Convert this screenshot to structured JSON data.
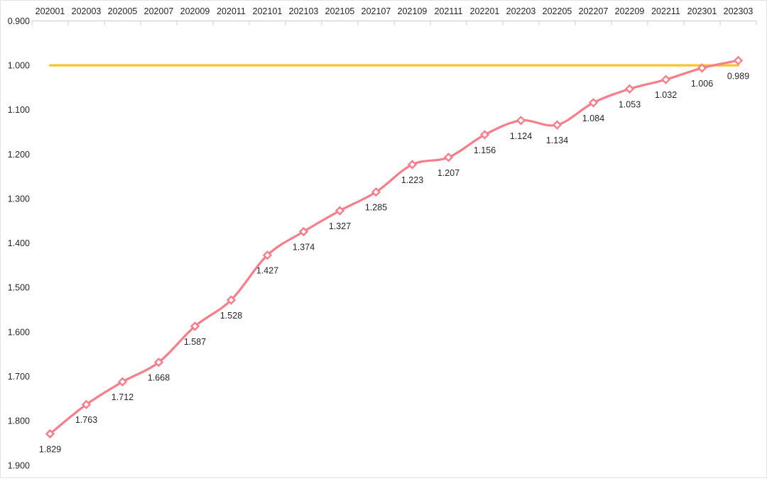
{
  "chart_data": {
    "type": "line",
    "title": "",
    "xlabel": "",
    "ylabel": "",
    "x_axis": {
      "position": "top",
      "categories": [
        "202001",
        "202003",
        "202005",
        "202007",
        "202009",
        "202011",
        "202101",
        "202103",
        "202105",
        "202107",
        "202109",
        "202111",
        "202201",
        "202203",
        "202205",
        "202207",
        "202209",
        "202211",
        "202301",
        "202303"
      ]
    },
    "y_axis": {
      "inverted": true,
      "min": 0.9,
      "max": 1.9,
      "step": 0.1,
      "tick_labels": [
        "0.900",
        "1.000",
        "1.100",
        "1.200",
        "1.300",
        "1.400",
        "1.500",
        "1.600",
        "1.700",
        "1.800",
        "1.900"
      ]
    },
    "series": [
      {
        "name": "value-line",
        "type": "line",
        "smooth": true,
        "color": "#f97d8b",
        "marker": "diamond",
        "marker_fill": "#ffffff",
        "values": [
          1.829,
          1.763,
          1.712,
          1.668,
          1.587,
          1.528,
          1.427,
          1.374,
          1.327,
          1.285,
          1.223,
          1.207,
          1.156,
          1.124,
          1.134,
          1.084,
          1.053,
          1.032,
          1.006,
          0.989
        ],
        "data_labels": [
          "1.829",
          "1.763",
          "1.712",
          "1.668",
          "1.587",
          "1.528",
          "1.427",
          "1.374",
          "1.327",
          "1.285",
          "1.223",
          "1.207",
          "1.156",
          "1.124",
          "1.134",
          "1.084",
          "1.053",
          "1.032",
          "1.006",
          "0.989"
        ]
      },
      {
        "name": "reference-line",
        "type": "line",
        "smooth": false,
        "color": "#fcc42c",
        "marker": "none",
        "constant_value": 1.0
      }
    ],
    "grid": false,
    "legend": false,
    "style": {
      "axis_color": "#cccccc",
      "text_color": "#262626",
      "background": "#ffffff"
    }
  }
}
